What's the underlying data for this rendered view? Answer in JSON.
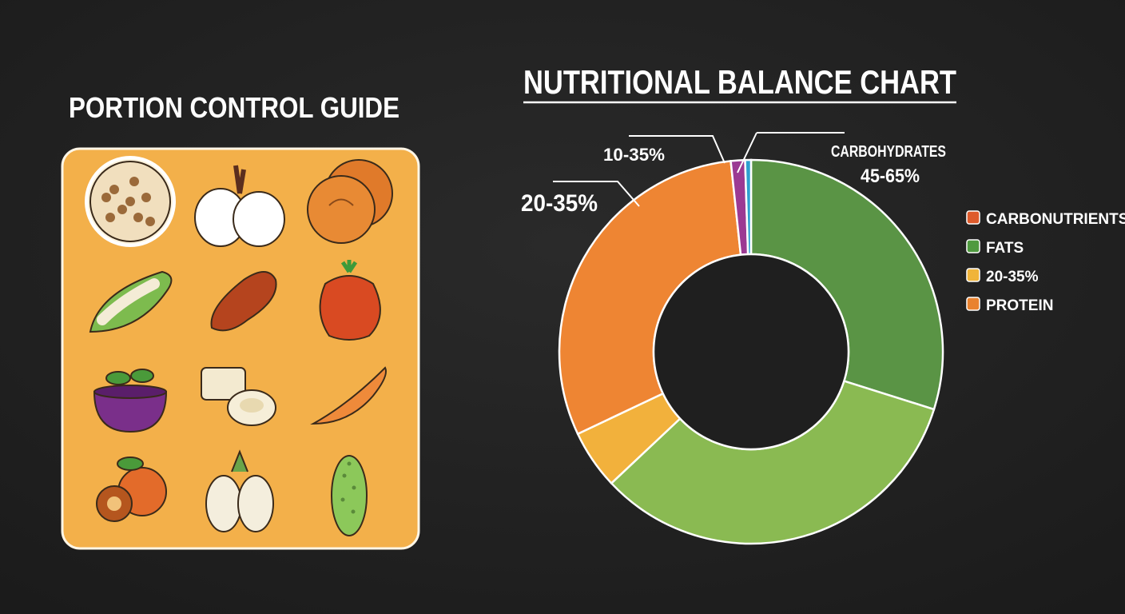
{
  "left_panel": {
    "title": "PORTION CONTROL GUIDE",
    "panel_color": "#f3b04a",
    "foods": [
      {
        "icon": "grain-cluster-icon"
      },
      {
        "icon": "garlic-icon"
      },
      {
        "icon": "persimmon-icon"
      },
      {
        "icon": "green-pea-pod-icon"
      },
      {
        "icon": "sweet-potato-icon"
      },
      {
        "icon": "tomato-icon"
      },
      {
        "icon": "acai-bowl-icon"
      },
      {
        "icon": "tofu-icon"
      },
      {
        "icon": "carrot-icon"
      },
      {
        "icon": "fruit-halves-icon"
      },
      {
        "icon": "white-eggplant-icon"
      },
      {
        "icon": "cucumber-icon"
      }
    ]
  },
  "chart_data": {
    "type": "pie",
    "title": "NUTRITIONAL BALANCE CHART",
    "donut": true,
    "slices": [
      {
        "value": 30,
        "color": "#5a9445"
      },
      {
        "value": 33.3,
        "color": "#8aba52"
      },
      {
        "value": 5,
        "color": "#f2b13c"
      },
      {
        "value": 30.5,
        "color": "#ee8533"
      },
      {
        "value": 1.2,
        "color": "#9b3a93"
      },
      {
        "value": 0.5,
        "color": "#2ea0d0"
      }
    ],
    "annotations": {
      "carbs_name": "CARBOHYDRATES",
      "carbs_range": "45-65%",
      "protein_range": "10-35%",
      "fat_range": "20-35%"
    },
    "legend": {
      "placement": "right",
      "items": [
        {
          "label": "CARBONUTRIENTS",
          "color": "#de5b2c"
        },
        {
          "label": "FATS",
          "color": "#4f9a3f"
        },
        {
          "label": "20-35%",
          "color": "#f0b43a"
        },
        {
          "label": "PROTEIN",
          "color": "#e9822f"
        }
      ]
    }
  }
}
